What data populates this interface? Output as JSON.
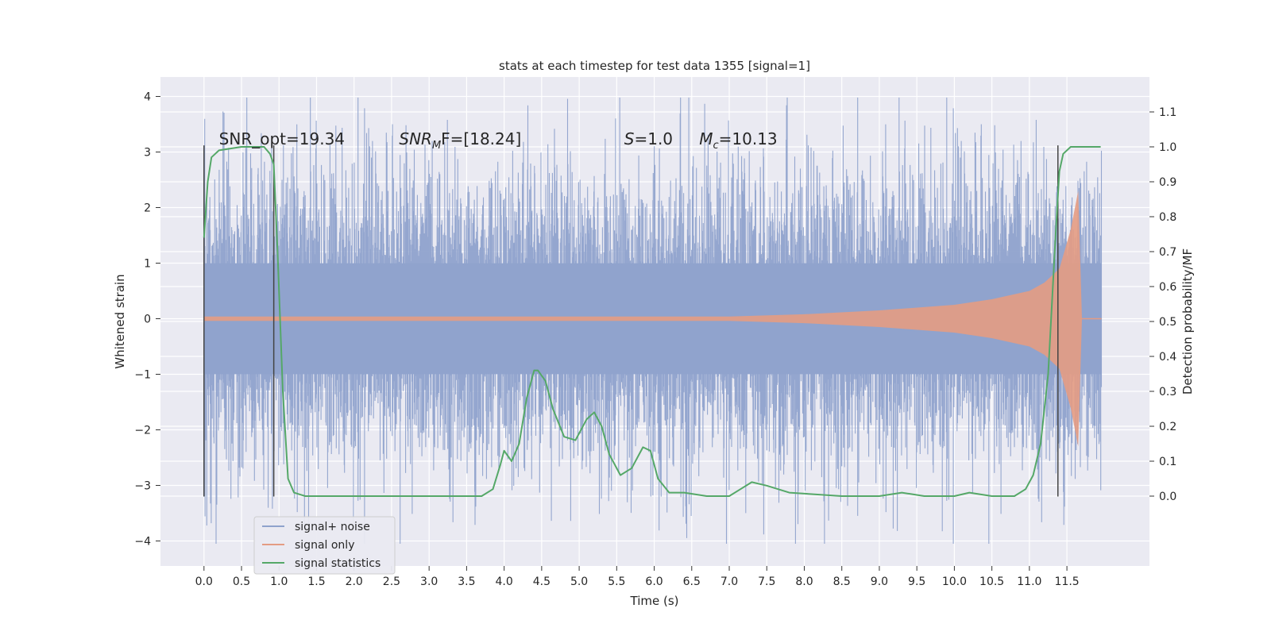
{
  "chart_data": {
    "type": "line",
    "title": "stats at each timestep for test data 1355 [signal=1]",
    "xlabel": "Time (s)",
    "ylabel_left": "Whitened strain",
    "ylabel_right": "Detection probability/MF",
    "xlim": [
      -0.58,
      12.6
    ],
    "ylim_left": [
      -4.45,
      4.35
    ],
    "ylim_right": [
      -0.2,
      1.2
    ],
    "x_ticks": [
      "0.0",
      "0.5",
      "1.0",
      "1.5",
      "2.0",
      "2.5",
      "3.0",
      "3.5",
      "4.0",
      "4.5",
      "5.0",
      "5.5",
      "6.0",
      "6.5",
      "7.0",
      "7.5",
      "8.0",
      "8.5",
      "9.0",
      "9.5",
      "10.0",
      "10.5",
      "11.0",
      "11.5"
    ],
    "y_ticks_left": [
      "−4",
      "−3",
      "−2",
      "−1",
      "0",
      "1",
      "2",
      "3",
      "4"
    ],
    "y_ticks_right": [
      "0.0",
      "0.1",
      "0.2",
      "0.3",
      "0.4",
      "0.5",
      "0.6",
      "0.7",
      "0.8",
      "0.9",
      "1.0",
      "1.1"
    ],
    "grid": true,
    "legend_position": "lower-left",
    "annotations": [
      {
        "text": "SNR_opt=19.34",
        "x": 0.2
      },
      {
        "text_main": "SNR",
        "text_sub": "M",
        "text_rest": "F=[18.24]",
        "x": 2.6
      },
      {
        "text_main": "S",
        "text_rest": "=1.0",
        "x": 5.6
      },
      {
        "text_main": "M",
        "text_sub": "c",
        "text_rest": "=10.13",
        "x": 6.6
      }
    ],
    "vlines": [
      0.0,
      0.93,
      11.38
    ],
    "series": [
      {
        "name": "signal+ noise",
        "color": "#8fa2cc",
        "axis": "left",
        "x_range": [
          0.0,
          11.96
        ],
        "amplitude_envelope": [
          -4.05,
          3.98
        ]
      },
      {
        "name": "signal only",
        "color": "#e49c83",
        "axis": "left",
        "envelope_x": [
          0.0,
          7.0,
          8.0,
          9.0,
          10.0,
          10.5,
          11.0,
          11.2,
          11.4,
          11.55,
          11.65,
          11.7
        ],
        "envelope_y": [
          0.04,
          0.04,
          0.08,
          0.15,
          0.25,
          0.35,
          0.5,
          0.65,
          0.9,
          1.6,
          2.3,
          0.0
        ]
      },
      {
        "name": "signal statistics",
        "color": "#55a868",
        "axis": "right",
        "x": [
          0.0,
          0.05,
          0.1,
          0.2,
          0.5,
          0.8,
          0.88,
          0.93,
          0.98,
          1.05,
          1.12,
          1.2,
          1.35,
          1.6,
          2.0,
          3.0,
          3.7,
          3.85,
          3.95,
          4.0,
          4.1,
          4.2,
          4.3,
          4.4,
          4.45,
          4.55,
          4.65,
          4.8,
          4.95,
          5.1,
          5.2,
          5.3,
          5.4,
          5.55,
          5.7,
          5.85,
          5.95,
          6.05,
          6.2,
          6.4,
          6.7,
          7.0,
          7.15,
          7.3,
          7.5,
          7.8,
          8.5,
          9.0,
          9.3,
          9.6,
          10.0,
          10.2,
          10.5,
          10.8,
          10.95,
          11.05,
          11.15,
          11.25,
          11.3,
          11.35,
          11.4,
          11.45,
          11.55,
          11.95
        ],
        "y": [
          0.74,
          0.9,
          0.97,
          0.99,
          1.0,
          1.0,
          0.98,
          0.95,
          0.7,
          0.3,
          0.05,
          0.01,
          0.0,
          0.0,
          0.0,
          0.0,
          0.0,
          0.02,
          0.09,
          0.13,
          0.1,
          0.15,
          0.28,
          0.36,
          0.36,
          0.33,
          0.25,
          0.17,
          0.16,
          0.22,
          0.24,
          0.2,
          0.12,
          0.06,
          0.08,
          0.14,
          0.13,
          0.05,
          0.01,
          0.01,
          0.0,
          0.0,
          0.02,
          0.04,
          0.03,
          0.01,
          0.0,
          0.0,
          0.01,
          0.0,
          0.0,
          0.01,
          0.0,
          0.0,
          0.02,
          0.06,
          0.15,
          0.35,
          0.55,
          0.75,
          0.93,
          0.98,
          1.0,
          1.0
        ]
      }
    ]
  }
}
